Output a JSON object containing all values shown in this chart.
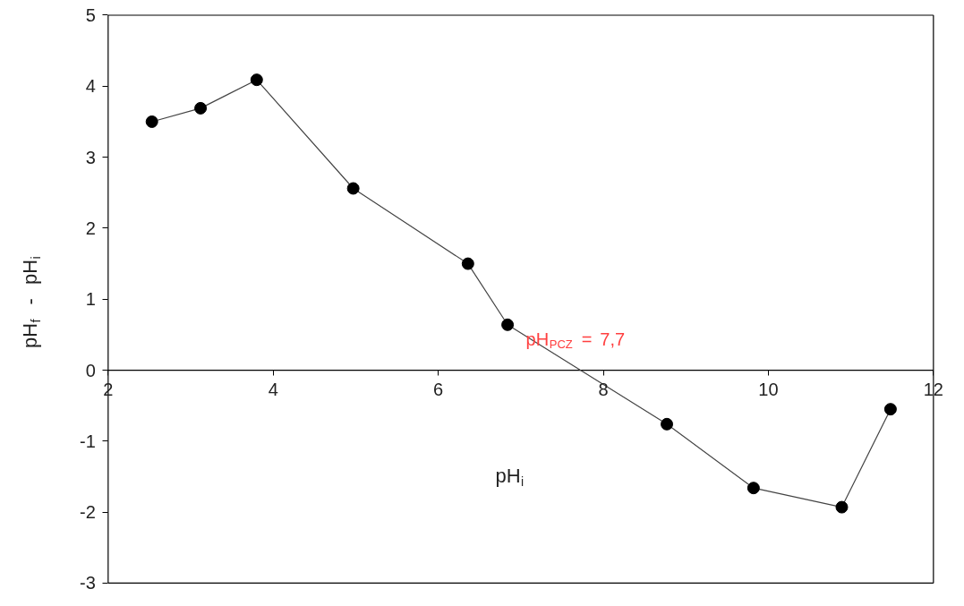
{
  "chart_data": {
    "type": "line",
    "xlabel": "pH$_{i}$",
    "ylabel": "pH$_{f}$ - pH$_{i}$",
    "x": [
      2.53,
      3.12,
      3.8,
      4.97,
      6.36,
      6.84,
      8.77,
      9.82,
      10.89,
      11.48
    ],
    "series": [
      {
        "color": "#000000",
        "values": [
          3.5,
          3.69,
          4.09,
          2.56,
          1.5,
          0.64,
          -0.76,
          -1.66,
          -1.93,
          -0.55
        ]
      }
    ],
    "xlim": [
      2,
      12
    ],
    "xticks": [
      2,
      4,
      6,
      8,
      10,
      12
    ],
    "ylim": [
      -3,
      5
    ],
    "yticks": [
      -3,
      -2,
      -1,
      0,
      1,
      2,
      3,
      4,
      5
    ],
    "marker": "circle",
    "line_style": "solid",
    "grid": false,
    "annotations": [
      "pH$_{PCZ}$ = 7,7"
    ]
  }
}
